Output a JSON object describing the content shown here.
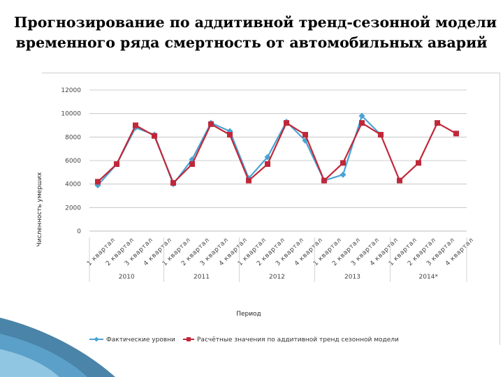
{
  "slide": {
    "title_line1": "Прогнозирование по аддитивной тренд-сезонной модели",
    "title_line2": "временного ряда смертность от автомобильных аварий"
  },
  "colors": {
    "actual": "#4aa3d4",
    "model": "#c0283a",
    "grid": "#bdbdbd",
    "decor": "#2a6f99"
  },
  "chart_data": {
    "type": "line",
    "ylabel": "Численность умерших",
    "xlabel": "Период",
    "ylim": [
      0,
      12000
    ],
    "yticks": [
      0,
      2000,
      4000,
      6000,
      8000,
      10000,
      12000
    ],
    "grid": true,
    "legend_position": "bottom",
    "categories": [
      "1 квартал",
      "2 квартал",
      "3 квартал",
      "4 квартал",
      "1 квартал",
      "2 квартал",
      "3 квартал",
      "4 квартал",
      "1 квартал",
      "2 квартал",
      "3 квартал",
      "4 квартал",
      "1 квартал",
      "2 квартал",
      "3 квартал",
      "4 квартал",
      "1 квартал",
      "2 квартал",
      "3 квартал",
      "4 квартал"
    ],
    "groups": [
      "2010",
      "2011",
      "2012",
      "2013",
      "2014*"
    ],
    "series": [
      {
        "name": "Фактические уровни",
        "values": [
          3900,
          5700,
          8800,
          8200,
          4000,
          6100,
          9200,
          8500,
          4500,
          6300,
          9300,
          7700,
          4300,
          4800,
          9800,
          8200,
          null,
          null,
          null,
          null
        ]
      },
      {
        "name": "Расчётные значения по аддитивной тренд сезонной модели",
        "values": [
          4200,
          5700,
          9000,
          8100,
          4100,
          5700,
          9100,
          8200,
          4300,
          5700,
          9200,
          8200,
          4300,
          5800,
          9200,
          8200,
          4300,
          5800,
          9200,
          8300
        ]
      }
    ]
  }
}
